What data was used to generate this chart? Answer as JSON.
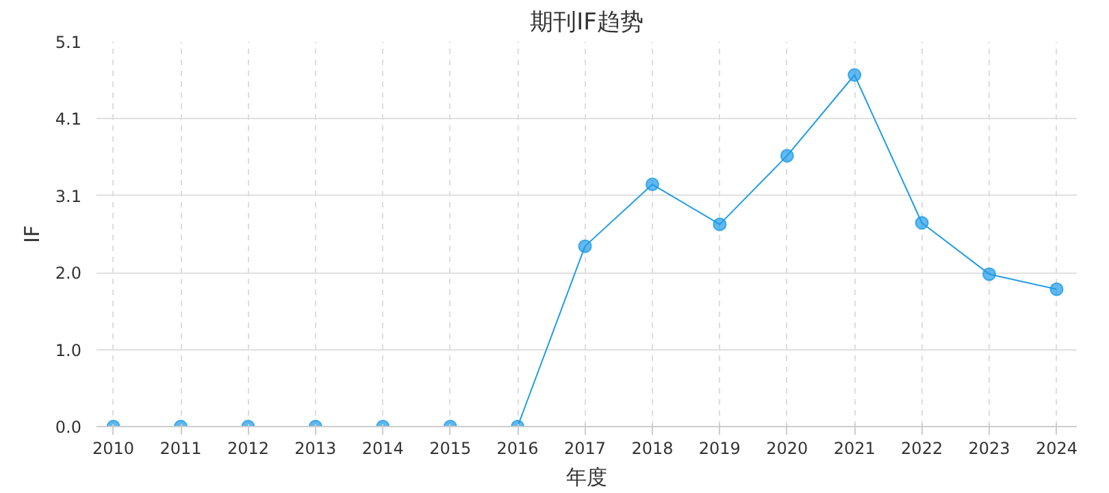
{
  "chart_data": {
    "type": "line",
    "title": "期刊IF趋势",
    "xlabel": "年度",
    "ylabel": "IF",
    "categories": [
      "2010",
      "2011",
      "2012",
      "2013",
      "2014",
      "2015",
      "2016",
      "2017",
      "2018",
      "2019",
      "2020",
      "2021",
      "2022",
      "2023",
      "2024"
    ],
    "series": [
      {
        "color": "#1e9be8",
        "values": [
          0,
          0,
          0,
          0,
          0,
          0,
          0,
          2.39,
          3.21,
          2.68,
          3.59,
          4.66,
          2.7,
          2.02,
          1.82
        ]
      }
    ],
    "ylim": [
      0,
      5.1
    ],
    "yticks": [
      {
        "value": 0,
        "label": "0.0"
      },
      {
        "value": 1.02,
        "label": "1.0"
      },
      {
        "value": 2.04,
        "label": "2.0"
      },
      {
        "value": 3.06,
        "label": "3.1"
      },
      {
        "value": 4.08,
        "label": "4.1"
      },
      {
        "value": 5.1,
        "label": "5.1"
      }
    ],
    "grid": true,
    "marker": "circle",
    "line_style": "solid"
  }
}
